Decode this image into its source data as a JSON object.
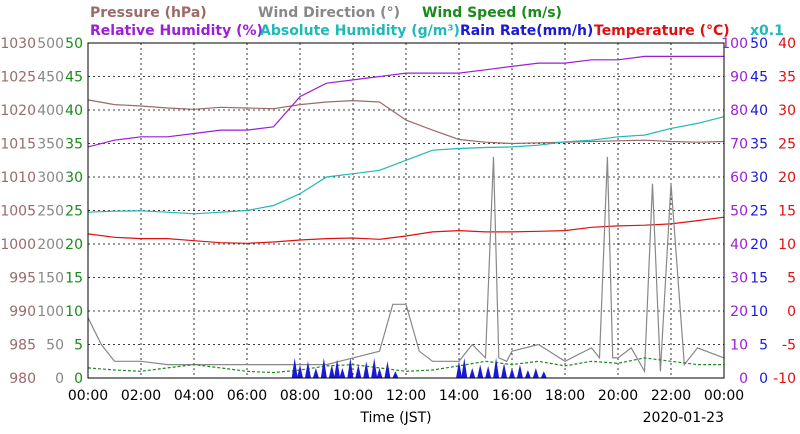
{
  "chart_data": {
    "type": "line",
    "date_label": "2020-01-23",
    "xlabel": "Time (JST)",
    "x_ticks": [
      "00:00",
      "02:00",
      "04:00",
      "06:00",
      "08:00",
      "10:00",
      "12:00",
      "14:00",
      "16:00",
      "18:00",
      "20:00",
      "22:00",
      "00:00"
    ],
    "legend": {
      "row1": [
        {
          "text": "Pressure (hPa)",
          "color": "#9b6a6a"
        },
        {
          "text": "Wind Direction (°)",
          "color": "#888888"
        },
        {
          "text": "Wind Speed (m/s)",
          "color": "#1a8a1a"
        }
      ],
      "row2": [
        {
          "text": "Relative Humidity (%)",
          "color": "#9b1fd6"
        },
        {
          "text": "Absolute Humidity (g/m³)",
          "color": "#20b8b8"
        },
        {
          "text": "Rain Rate(mm/h)",
          "color": "#1a1ad6"
        },
        {
          "text": "Temperature (°C)",
          "color": "#e01010"
        },
        {
          "text": "x0.1",
          "color": "#20b8b8"
        }
      ]
    },
    "axes": {
      "pressure": {
        "label_color": "#9b6a6a",
        "ticks": [
          "1030",
          "1025",
          "1020",
          "1015",
          "1010",
          "1005",
          "1000",
          "995",
          "990",
          "985",
          "980"
        ],
        "range": [
          980,
          1030
        ]
      },
      "wind_direction": {
        "label_color": "#888888",
        "ticks": [
          "500",
          "450",
          "400",
          "350",
          "300",
          "250",
          "200",
          "150",
          "100",
          "50",
          "0"
        ],
        "range": [
          0,
          500
        ]
      },
      "wind_speed": {
        "label_color": "#1a8a1a",
        "ticks": [
          "50",
          "45",
          "40",
          "35",
          "30",
          "25",
          "20",
          "15",
          "10",
          "5",
          "0"
        ],
        "range": [
          0,
          50
        ]
      },
      "humidity": {
        "label_color": "#9b1fd6",
        "ticks": [
          "100",
          "90",
          "80",
          "70",
          "60",
          "50",
          "40",
          "30",
          "20",
          "10",
          "0"
        ],
        "range": [
          0,
          100
        ]
      },
      "rain_rate": {
        "label_color": "#1a1ad6",
        "ticks": [
          "50",
          "45",
          "40",
          "35",
          "30",
          "25",
          "20",
          "15",
          "10",
          "5",
          "0"
        ],
        "range": [
          0,
          50
        ]
      },
      "temperature": {
        "label_color": "#e01010",
        "ticks": [
          "40",
          "35",
          "30",
          "25",
          "20",
          "15",
          "10",
          "5",
          "0",
          "-5",
          "-10"
        ],
        "range": [
          -10,
          40
        ]
      }
    },
    "series": [
      {
        "name": "Pressure (hPa)",
        "color": "#9b6a6a",
        "axis": "pressure",
        "x": [
          0,
          1,
          2,
          3,
          4,
          5,
          6,
          7,
          8,
          9,
          10,
          11,
          12,
          13,
          14,
          15,
          16,
          17,
          18,
          19,
          20,
          21,
          22,
          23,
          24
        ],
        "y": [
          1021.5,
          1020.8,
          1020.6,
          1020.3,
          1020.1,
          1020.4,
          1020.3,
          1020.2,
          1020.8,
          1021.2,
          1021.4,
          1021.2,
          1018.5,
          1017.0,
          1015.6,
          1015.2,
          1015.0,
          1015.1,
          1015.2,
          1015.3,
          1015.4,
          1015.5,
          1015.3,
          1015.2,
          1015.3
        ]
      },
      {
        "name": "Relative Humidity (%)",
        "color": "#9b1fd6",
        "axis": "humidity",
        "x": [
          0,
          1,
          2,
          3,
          4,
          5,
          6,
          7,
          8,
          9,
          10,
          11,
          12,
          13,
          14,
          15,
          16,
          17,
          18,
          19,
          20,
          21,
          22,
          23,
          24
        ],
        "y": [
          69,
          71,
          72,
          72,
          73,
          74,
          74,
          75,
          84,
          88,
          89,
          90,
          91,
          91,
          91,
          92,
          93,
          94,
          94,
          95,
          95,
          96,
          96,
          96,
          96
        ]
      },
      {
        "name": "Absolute Humidity (g/m³)",
        "color": "#20b8b8",
        "axis": "humidity",
        "scale_note": "x0.1",
        "x": [
          0,
          1,
          2,
          3,
          4,
          5,
          6,
          7,
          8,
          9,
          10,
          11,
          12,
          13,
          14,
          15,
          16,
          17,
          18,
          19,
          20,
          21,
          22,
          23,
          24
        ],
        "y": [
          49.5,
          49.8,
          49.9,
          49.5,
          49.0,
          49.5,
          50.0,
          51.5,
          55.0,
          60.0,
          61.0,
          62.0,
          65.0,
          68.0,
          68.5,
          68.8,
          69.0,
          69.5,
          70.5,
          71.0,
          72.0,
          72.5,
          74.5,
          76.0,
          78.0
        ]
      },
      {
        "name": "Temperature (°C)",
        "color": "#e01010",
        "axis": "temperature",
        "x": [
          0,
          1,
          2,
          3,
          4,
          5,
          6,
          7,
          8,
          9,
          10,
          11,
          12,
          13,
          14,
          15,
          16,
          17,
          18,
          19,
          20,
          21,
          22,
          23,
          24
        ],
        "y": [
          11.5,
          11.0,
          10.8,
          10.8,
          10.5,
          10.2,
          10.1,
          10.3,
          10.6,
          10.8,
          10.9,
          10.7,
          11.2,
          11.8,
          12.0,
          11.8,
          11.8,
          11.9,
          12.0,
          12.5,
          12.7,
          12.8,
          13.0,
          13.5,
          14.0
        ]
      },
      {
        "name": "Wind Direction (°)",
        "color": "#888888",
        "axis": "wind_direction",
        "x": [
          0,
          0.5,
          1,
          2,
          3,
          4,
          5,
          6,
          7,
          8,
          9,
          10,
          11,
          11.5,
          12,
          12.5,
          13,
          14,
          14.5,
          15,
          15.3,
          15.5,
          15.8,
          16,
          17,
          18,
          19,
          19.3,
          19.6,
          19.8,
          20,
          20.5,
          21,
          21.3,
          21.6,
          22,
          22.5,
          23,
          24
        ],
        "y": [
          90,
          50,
          25,
          25,
          20,
          20,
          20,
          20,
          20,
          20,
          20,
          30,
          40,
          110,
          110,
          40,
          25,
          25,
          50,
          30,
          330,
          30,
          25,
          40,
          50,
          25,
          45,
          30,
          330,
          30,
          30,
          45,
          10,
          290,
          10,
          290,
          20,
          45,
          30
        ]
      },
      {
        "name": "Wind Speed (m/s)",
        "color": "#1a8a1a",
        "axis": "wind_speed",
        "x": [
          0,
          1,
          2,
          3,
          4,
          5,
          6,
          7,
          8,
          9,
          10,
          11,
          12,
          13,
          14,
          15,
          16,
          17,
          18,
          19,
          20,
          21,
          22,
          23,
          24
        ],
        "y": [
          1.5,
          1.2,
          1.0,
          1.5,
          2.0,
          1.5,
          1.0,
          0.8,
          1.2,
          1.8,
          2.0,
          1.5,
          1.0,
          1.2,
          1.8,
          2.5,
          2.0,
          2.5,
          1.8,
          2.5,
          2.2,
          3.0,
          2.5,
          2.0,
          2.0
        ]
      },
      {
        "name": "Rain Rate(mm/h)",
        "color": "#1a1ad6",
        "axis": "rain_rate",
        "type": "bar",
        "x": [
          7.8,
          8.0,
          8.3,
          8.6,
          8.9,
          9.2,
          9.4,
          9.6,
          9.9,
          10.2,
          10.5,
          10.8,
          11.0,
          11.3,
          11.6,
          14.0,
          14.2,
          14.5,
          14.8,
          15.1,
          15.4,
          15.7,
          16.0,
          16.3,
          16.6,
          16.9,
          17.2
        ],
        "y": [
          3,
          2,
          2.5,
          1.5,
          3,
          2,
          2.8,
          1.5,
          3,
          2,
          2.5,
          3,
          1.5,
          2.5,
          1,
          2.5,
          3,
          1.5,
          2,
          1.8,
          3,
          2.2,
          1.5,
          2,
          1.2,
          1.5,
          1
        ]
      }
    ]
  }
}
